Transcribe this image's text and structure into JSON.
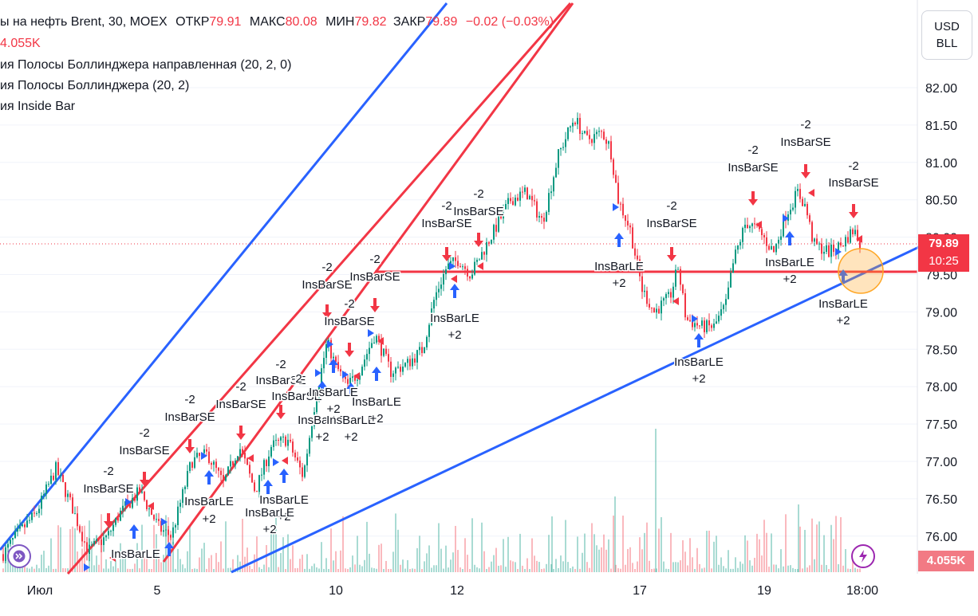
{
  "header": {
    "symbol_line": "ы на нефть Brent, 30, MOEX",
    "open_label": "ОТКР",
    "open_value": "79.91",
    "high_label": "МАКС",
    "high_value": "80.08",
    "low_label": "МИН",
    "low_value": "79.82",
    "close_label": "ЗАКР",
    "close_value": "79.89",
    "change": "−0.02 (−0.03%)",
    "volume": "4.055K"
  },
  "indicators": [
    "ия Полосы Боллинджера направленная (20, 2, 0)",
    "ия Полосы Боллинджера (20, 2)",
    "ия Inside Bar"
  ],
  "currency": {
    "line1": "USD",
    "line2": "BLL"
  },
  "price_tag": {
    "price": "79.89",
    "countdown": "10:25"
  },
  "volume_tag": "4.055K",
  "colors": {
    "up": "#089981",
    "down": "#f23645",
    "blue": "#2962ff",
    "red": "#f23645",
    "arrow_blue": "#2962ff"
  },
  "icons": {
    "left_button": "replay-icon",
    "right_button": "lightning-icon"
  },
  "chart_data": {
    "type": "candlestick",
    "ylim": [
      75.7,
      82.5
    ],
    "y_ticks": [
      "82.00",
      "81.50",
      "81.00",
      "80.50",
      "80.00",
      "79.50",
      "79.00",
      "78.50",
      "78.00",
      "77.50",
      "77.00",
      "76.50",
      "76.00"
    ],
    "x_ticks": [
      "Июл",
      "5",
      "10",
      "12",
      "17",
      "19",
      "18:00"
    ],
    "horizontal_line": 79.53,
    "signals": [
      {
        "text": "-2",
        "x": 136,
        "y": 596
      },
      {
        "text": "InsBarSE",
        "x": 136,
        "y": 618
      },
      {
        "text": "-2",
        "x": 181,
        "y": 548
      },
      {
        "text": "InsBarSE",
        "x": 181,
        "y": 570
      },
      {
        "text": "-2",
        "x": 238,
        "y": 506
      },
      {
        "text": "InsBarSE",
        "x": 238,
        "y": 528
      },
      {
        "text": "-2",
        "x": 302,
        "y": 490
      },
      {
        "text": "InsBarSE",
        "x": 302,
        "y": 512
      },
      {
        "text": "-2",
        "x": 352,
        "y": 462
      },
      {
        "text": "InsBarSE",
        "x": 352,
        "y": 482
      },
      {
        "text": "-2",
        "x": 372,
        "y": 480
      },
      {
        "text": "InsBarSE",
        "x": 372,
        "y": 502
      },
      {
        "text": "-2",
        "x": 410,
        "y": 340
      },
      {
        "text": "InsBarSE",
        "x": 410,
        "y": 362
      },
      {
        "text": "-2",
        "x": 438,
        "y": 386
      },
      {
        "text": "InsBarSE",
        "x": 438,
        "y": 408
      },
      {
        "text": "-2",
        "x": 470,
        "y": 330
      },
      {
        "text": "InsBarSE",
        "x": 470,
        "y": 352
      },
      {
        "text": "-2",
        "x": 560,
        "y": 263
      },
      {
        "text": "InsBarSE",
        "x": 560,
        "y": 285
      },
      {
        "text": "-2",
        "x": 600,
        "y": 248
      },
      {
        "text": "InsBarSE",
        "x": 600,
        "y": 270
      },
      {
        "text": "-2",
        "x": 842,
        "y": 263
      },
      {
        "text": "InsBarSE",
        "x": 842,
        "y": 285
      },
      {
        "text": "-2",
        "x": 944,
        "y": 193
      },
      {
        "text": "InsBarSE",
        "x": 944,
        "y": 215
      },
      {
        "text": "-2",
        "x": 1010,
        "y": 161
      },
      {
        "text": "InsBarSE",
        "x": 1010,
        "y": 183
      },
      {
        "text": "-2",
        "x": 1070,
        "y": 213
      },
      {
        "text": "InsBarSE",
        "x": 1070,
        "y": 234
      },
      {
        "text": "InsBarLE",
        "x": 170,
        "y": 700
      },
      {
        "text": "InsBarLE",
        "x": 262,
        "y": 634
      },
      {
        "text": "+2",
        "x": 262,
        "y": 656
      },
      {
        "text": "InsBarLE",
        "x": 356,
        "y": 632
      },
      {
        "text": "+2",
        "x": 356,
        "y": 653
      },
      {
        "text": "InsBarLE",
        "x": 338,
        "y": 648
      },
      {
        "text": "+2",
        "x": 338,
        "y": 669
      },
      {
        "text": "InsBarLE",
        "x": 418,
        "y": 497
      },
      {
        "text": "+2",
        "x": 418,
        "y": 518
      },
      {
        "text": "InsBarLE",
        "x": 404,
        "y": 532
      },
      {
        "text": "+2",
        "x": 404,
        "y": 553
      },
      {
        "text": "InsBarLE",
        "x": 440,
        "y": 532
      },
      {
        "text": "+2",
        "x": 440,
        "y": 553
      },
      {
        "text": "InsBarLE",
        "x": 472,
        "y": 509
      },
      {
        "text": "+2",
        "x": 472,
        "y": 530
      },
      {
        "text": "InsBarLE",
        "x": 570,
        "y": 404
      },
      {
        "text": "+2",
        "x": 570,
        "y": 425
      },
      {
        "text": "InsBarLE",
        "x": 776,
        "y": 339
      },
      {
        "text": "+2",
        "x": 776,
        "y": 360
      },
      {
        "text": "InsBarLE",
        "x": 876,
        "y": 459
      },
      {
        "text": "+2",
        "x": 876,
        "y": 480
      },
      {
        "text": "InsBarLE",
        "x": 990,
        "y": 334
      },
      {
        "text": "+2",
        "x": 990,
        "y": 355
      },
      {
        "text": "InsBarLE",
        "x": 1057,
        "y": 386
      },
      {
        "text": "+2",
        "x": 1057,
        "y": 407
      }
    ],
    "annotation": "price-target-circle"
  }
}
